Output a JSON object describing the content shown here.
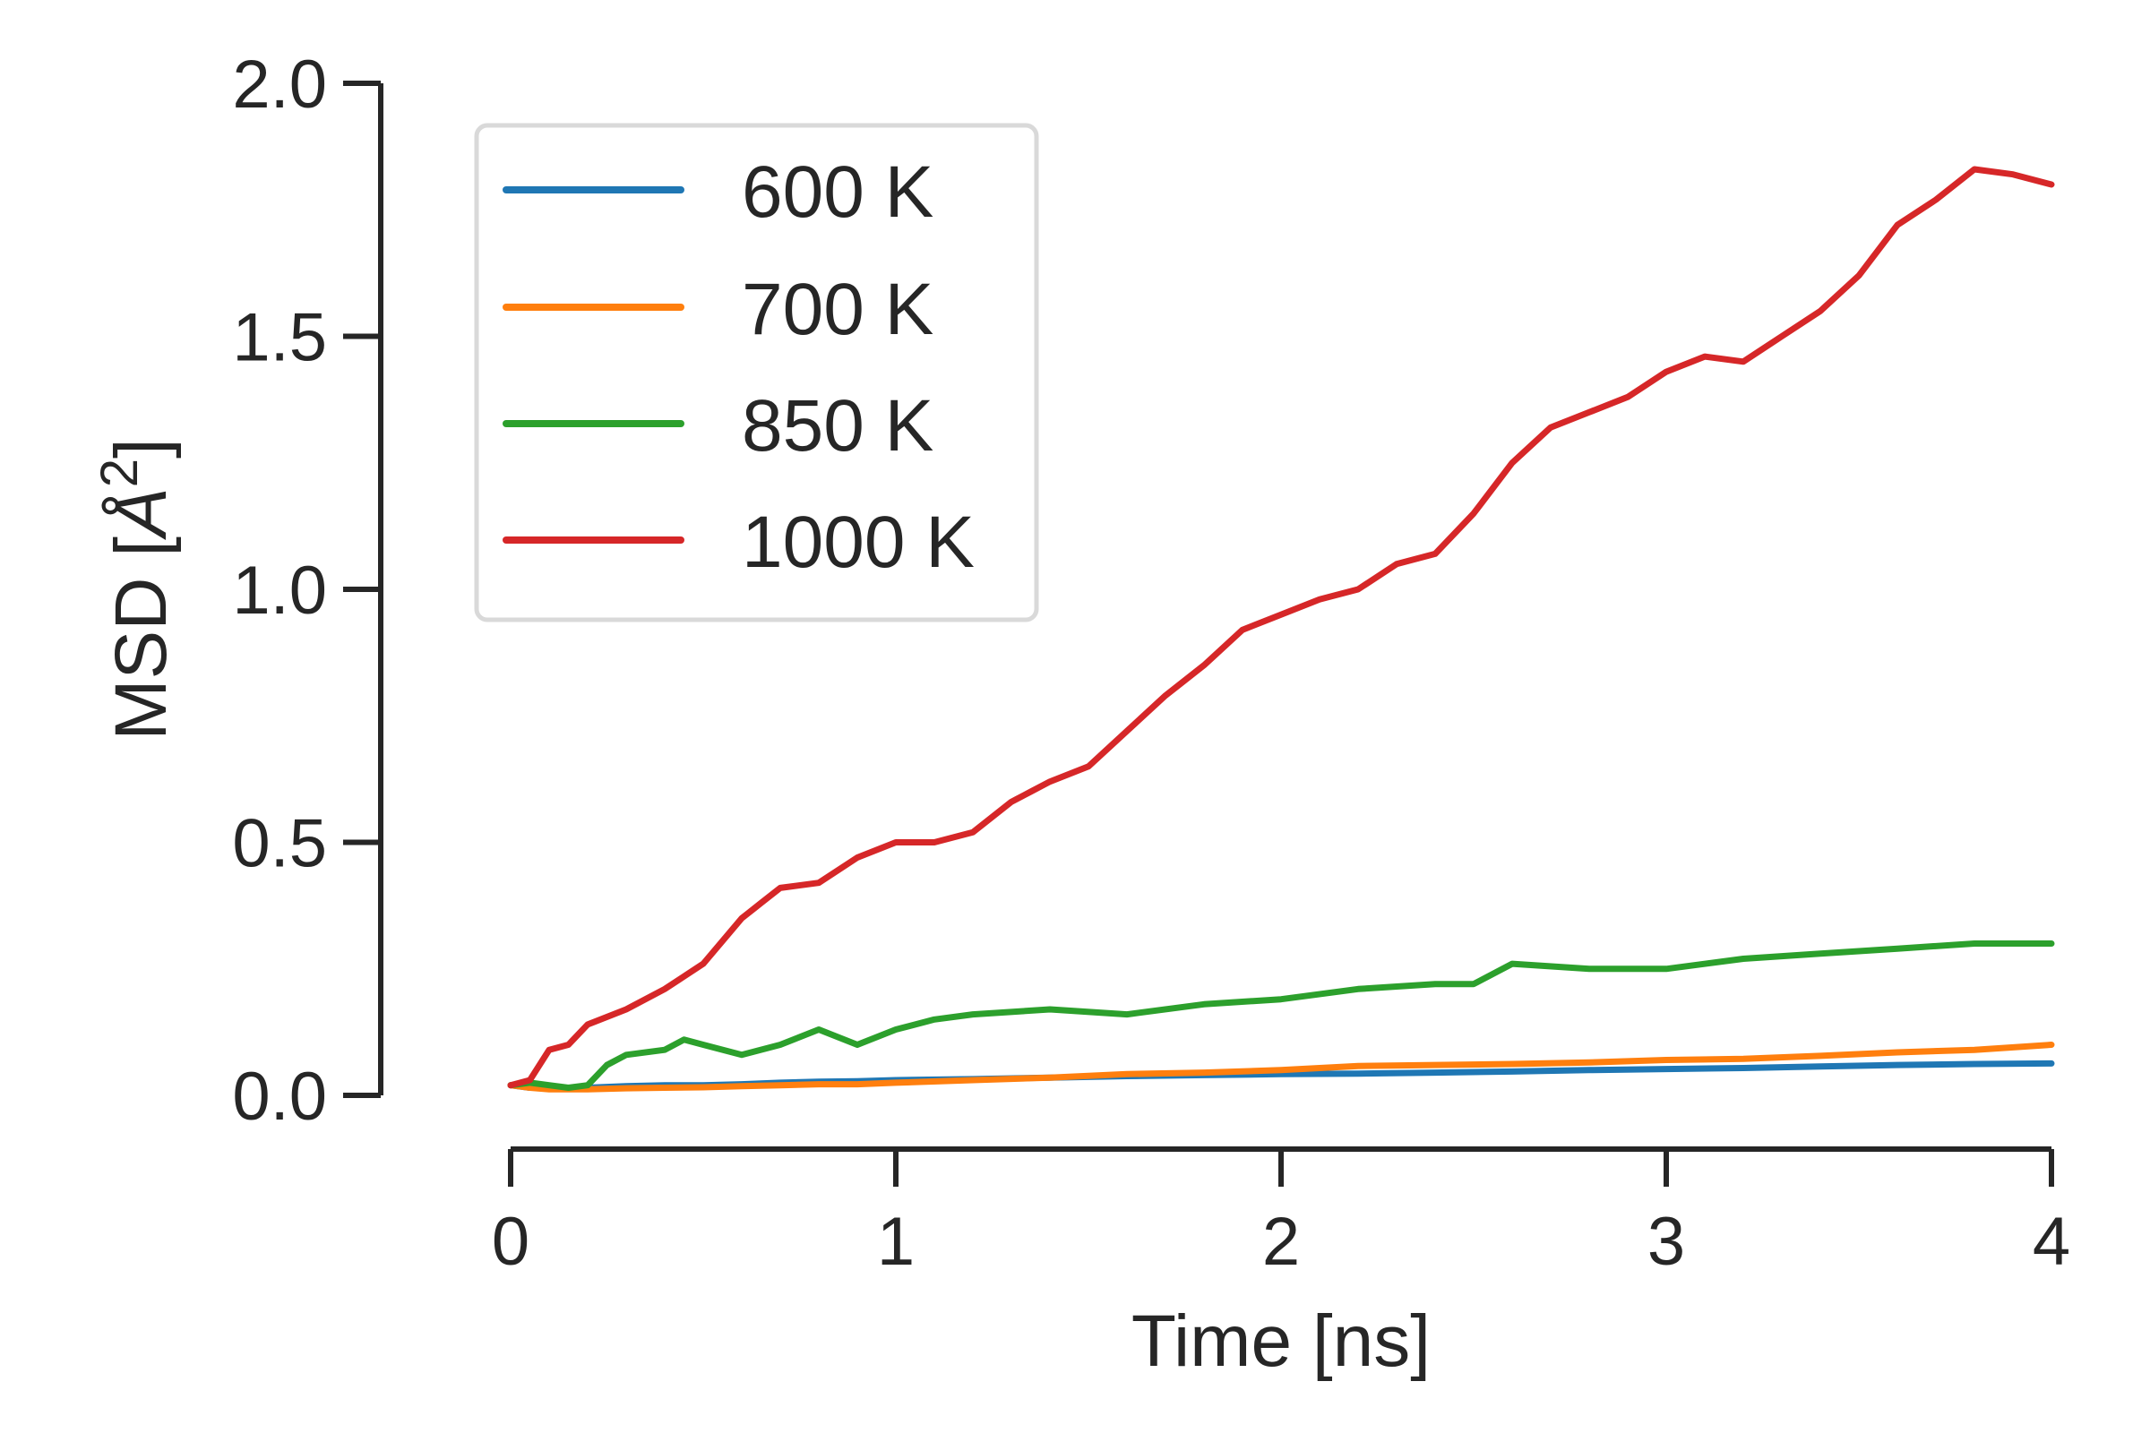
{
  "chart_data": {
    "type": "line",
    "xlabel": "Time [ns]",
    "ylabel_main": "MSD [",
    "ylabel_unit": "Å",
    "ylabel_sup": "2",
    "ylabel_close": "]",
    "xlim": [
      0,
      4
    ],
    "ylim": [
      0,
      2
    ],
    "xticks": [
      0,
      1,
      2,
      3,
      4
    ],
    "xtick_labels": [
      "0",
      "1",
      "2",
      "3",
      "4"
    ],
    "yticks": [
      0,
      0.5,
      1,
      1.5,
      2
    ],
    "ytick_labels": [
      "0.0",
      "0.5",
      "1.0",
      "1.5",
      "2.0"
    ],
    "grid": false,
    "legend_position": "upper-left",
    "series": [
      {
        "name": "600 K",
        "color": "#1f77b4",
        "x": [
          0,
          0.05,
          0.1,
          0.2,
          0.3,
          0.4,
          0.5,
          0.6,
          0.7,
          0.8,
          0.9,
          1.0,
          1.2,
          1.4,
          1.6,
          1.8,
          2.0,
          2.2,
          2.4,
          2.6,
          2.8,
          3.0,
          3.2,
          3.4,
          3.6,
          3.8,
          4.0
        ],
        "y": [
          0.02,
          0.015,
          0.015,
          0.015,
          0.018,
          0.02,
          0.02,
          0.022,
          0.025,
          0.027,
          0.028,
          0.03,
          0.032,
          0.035,
          0.038,
          0.04,
          0.042,
          0.043,
          0.045,
          0.047,
          0.05,
          0.052,
          0.054,
          0.057,
          0.06,
          0.062,
          0.063
        ]
      },
      {
        "name": "700 K",
        "color": "#ff7f0e",
        "x": [
          0,
          0.05,
          0.1,
          0.2,
          0.3,
          0.4,
          0.5,
          0.6,
          0.7,
          0.8,
          0.9,
          1.0,
          1.2,
          1.4,
          1.6,
          1.8,
          2.0,
          2.2,
          2.4,
          2.6,
          2.8,
          3.0,
          3.2,
          3.4,
          3.6,
          3.8,
          4.0
        ],
        "y": [
          0.02,
          0.015,
          0.012,
          0.012,
          0.014,
          0.015,
          0.016,
          0.018,
          0.02,
          0.022,
          0.022,
          0.025,
          0.03,
          0.035,
          0.042,
          0.045,
          0.05,
          0.058,
          0.06,
          0.062,
          0.065,
          0.07,
          0.072,
          0.078,
          0.085,
          0.09,
          0.1
        ]
      },
      {
        "name": "850 K",
        "color": "#2ca02c",
        "x": [
          0,
          0.05,
          0.1,
          0.15,
          0.2,
          0.25,
          0.3,
          0.4,
          0.45,
          0.5,
          0.6,
          0.7,
          0.8,
          0.9,
          1.0,
          1.1,
          1.2,
          1.4,
          1.6,
          1.8,
          2.0,
          2.2,
          2.4,
          2.5,
          2.6,
          2.8,
          3.0,
          3.2,
          3.4,
          3.6,
          3.8,
          4.0
        ],
        "y": [
          0.02,
          0.025,
          0.02,
          0.015,
          0.02,
          0.06,
          0.08,
          0.09,
          0.11,
          0.1,
          0.08,
          0.1,
          0.13,
          0.1,
          0.13,
          0.15,
          0.16,
          0.17,
          0.16,
          0.18,
          0.19,
          0.21,
          0.22,
          0.22,
          0.26,
          0.25,
          0.25,
          0.27,
          0.28,
          0.29,
          0.3,
          0.3
        ]
      },
      {
        "name": "1000 K",
        "color": "#d62728",
        "x": [
          0,
          0.05,
          0.1,
          0.15,
          0.2,
          0.3,
          0.4,
          0.5,
          0.6,
          0.65,
          0.7,
          0.8,
          0.9,
          1.0,
          1.1,
          1.2,
          1.3,
          1.35,
          1.4,
          1.5,
          1.6,
          1.7,
          1.8,
          1.9,
          2.0,
          2.1,
          2.2,
          2.3,
          2.4,
          2.5,
          2.6,
          2.7,
          2.8,
          2.9,
          3.0,
          3.1,
          3.2,
          3.3,
          3.4,
          3.5,
          3.6,
          3.7,
          3.8,
          3.9,
          4.0
        ],
        "y": [
          0.02,
          0.03,
          0.09,
          0.1,
          0.14,
          0.17,
          0.21,
          0.26,
          0.35,
          0.38,
          0.41,
          0.42,
          0.47,
          0.5,
          0.5,
          0.52,
          0.58,
          0.6,
          0.62,
          0.65,
          0.72,
          0.79,
          0.85,
          0.92,
          0.95,
          0.98,
          1.0,
          1.05,
          1.07,
          1.15,
          1.25,
          1.32,
          1.35,
          1.38,
          1.43,
          1.46,
          1.45,
          1.5,
          1.55,
          1.62,
          1.72,
          1.77,
          1.83,
          1.82,
          1.8
        ]
      }
    ]
  }
}
